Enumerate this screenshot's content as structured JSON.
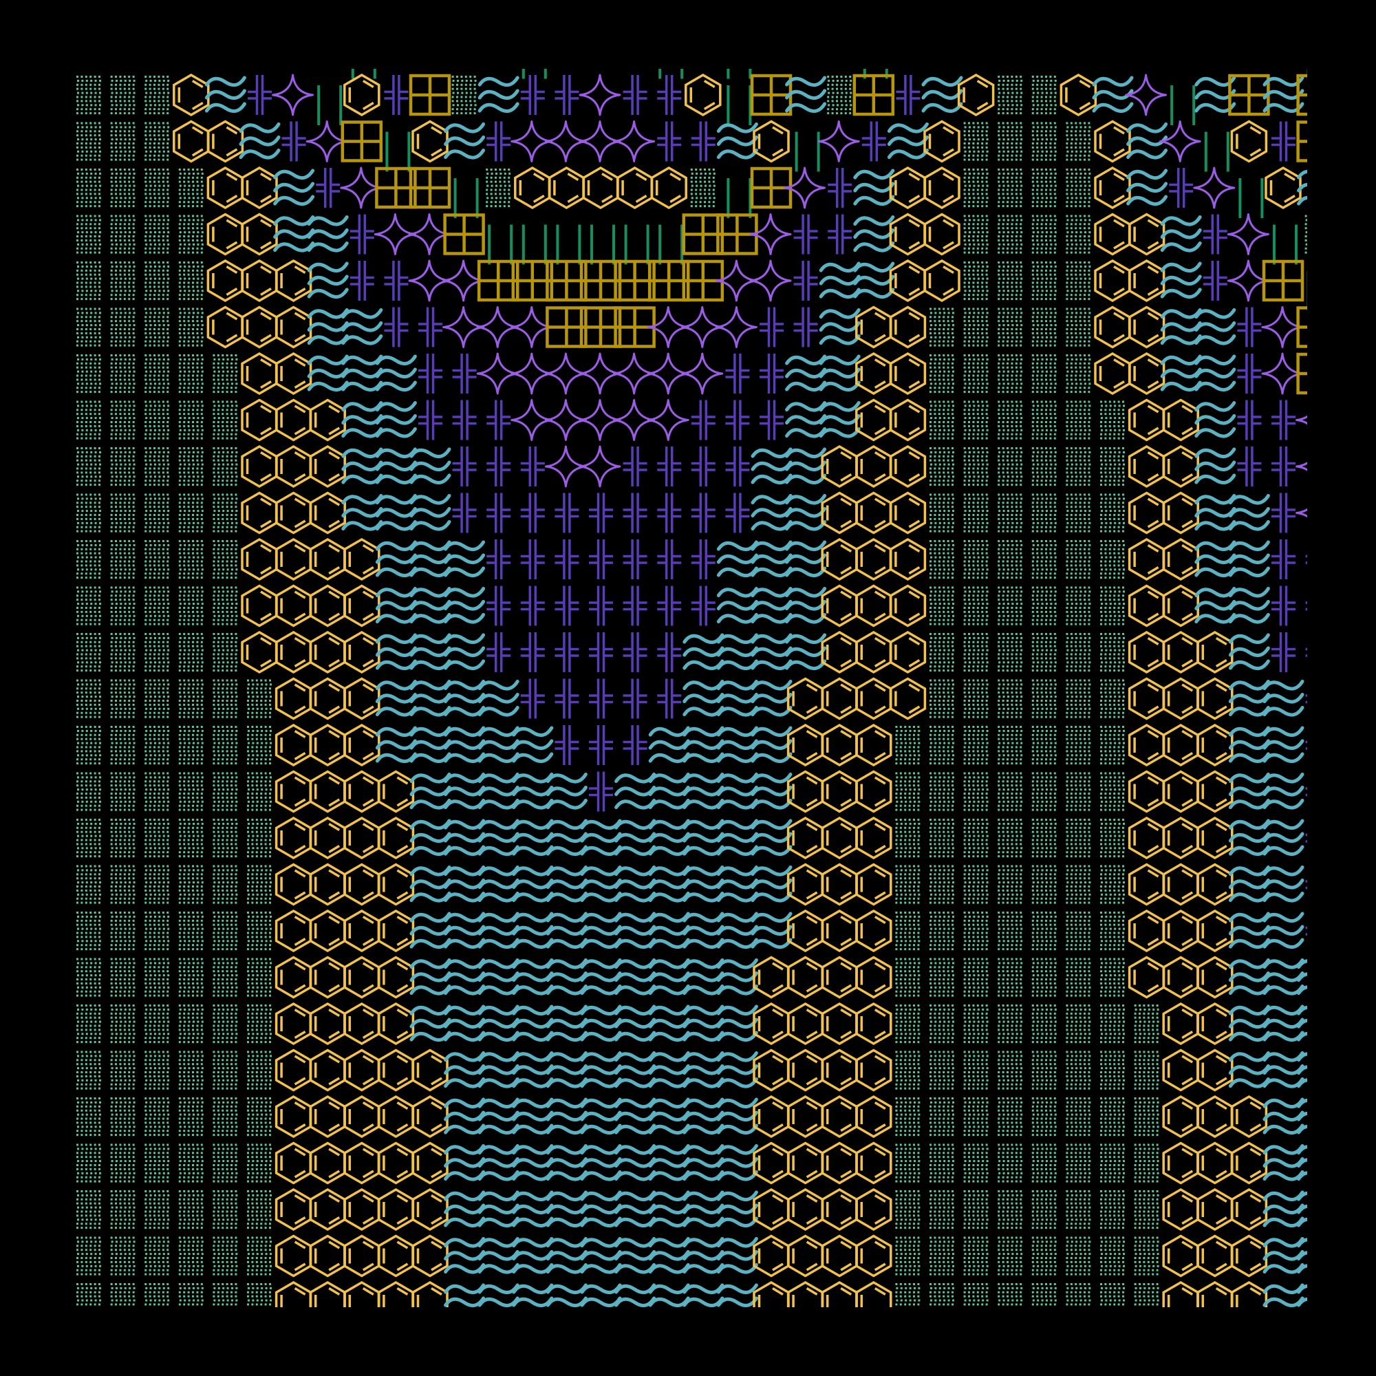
{
  "background": "#000000",
  "glyphs": {
    "░": {
      "name": "light-shade",
      "color": "#5fc49c"
    },
    "⌬": {
      "name": "benzene-ring",
      "color": "#f2c14e"
    },
    "≋": {
      "name": "triple-tilde",
      "color": "#5ab2c2"
    },
    "╬": {
      "name": "box-double-cross",
      "color": "#5a3bb8"
    },
    "✦": {
      "name": "four-pointed-star",
      "color": "#9b5de5"
    },
    "⊞": {
      "name": "squared-plus",
      "color": "#b8960a"
    },
    "‖": {
      "name": "double-vertical-bar",
      "color": "#14905f"
    }
  },
  "rows": [
    "        ‖    ‖   ‖ ‖   ‖            ‖",
    "░░░⌬≋╬✦‖⌬╬⊞░≋╬╬✦╬╬⌬‖⊞≋░⊞╬≋⌬░░⌬≋✦‖≋⊞≋⊞",
    "░░░⌬⌬≋╬✦⊞‖⌬≋╬✦✦✦✦╬╬≋⌬‖✦╬≋⌬░░░░⌬≋✦‖⌬╬⊞",
    "░░░░⌬⌬≋╬✦⊞⊞‖░⌬⌬⌬⌬⌬░‖⊞✦╬≋⌬⌬░░░░⌬≋╬✦‖⌬≋",
    "░░░░⌬⌬≋≋╬✦✦⊞‖‖‖‖‖‖⊞⊞✦╬╬≋⌬⌬░░░░⌬⌬≋╬✦‖░",
    "░░░░⌬⌬⌬≋╬╬✦✦⊞⊞⊞⊞⊞⊞⊞✦✦╬≋≋⌬⌬░░░░⌬⌬≋╬✦⊞‖",
    "░░░░⌬⌬⌬≋≋╬╬✦✦✦⊞⊞⊞✦✦✦╬╬≋⌬⌬░░░░░⌬⌬≋≋╬✦⊞",
    "░░░░░⌬⌬≋≋≋╬╬✦✦✦✦✦✦✦╬╬≋≋⌬⌬░░░░░⌬⌬≋≋╬✦⊞",
    "░░░░░⌬⌬⌬≋≋╬╬╬✦✦✦✦✦╬╬╬≋≋⌬⌬░░░░░░⌬⌬≋╬╬✦",
    "░░░░░⌬⌬⌬≋≋≋╬╬╬✦✦╬╬╬╬≋≋⌬⌬⌬░░░░░░⌬⌬≋╬╬✦",
    "░░░░░⌬⌬⌬≋≋≋╬╬╬╬╬╬╬╬╬≋≋⌬⌬⌬░░░░░░⌬⌬≋≋╬✦",
    "░░░░░⌬⌬⌬⌬≋≋≋╬╬╬╬╬╬╬≋≋≋⌬⌬⌬░░░░░░⌬⌬≋≋╬╬",
    "░░░░░⌬⌬⌬⌬≋≋≋╬╬╬╬╬╬╬≋≋≋⌬⌬⌬░░░░░░⌬⌬≋≋╬╬",
    "░░░░░⌬⌬⌬⌬≋≋≋╬╬╬╬╬╬≋≋≋≋⌬⌬⌬░░░░░░⌬⌬⌬≋╬╬",
    "░░░░░░⌬⌬⌬≋≋≋≋╬╬╬╬╬≋≋≋⌬⌬⌬⌬░░░░░░⌬⌬⌬≋≋╬",
    "░░░░░░⌬⌬⌬≋≋≋≋≋╬╬╬≋≋≋≋⌬⌬⌬░░░░░░░⌬⌬⌬≋≋╬",
    "░░░░░░⌬⌬⌬⌬≋≋≋≋≋╬≋≋≋≋≋⌬⌬⌬░░░░░░░⌬⌬⌬≋≋╬",
    "░░░░░░⌬⌬⌬⌬≋≋≋≋≋≋≋≋≋≋≋⌬⌬⌬░░░░░░░⌬⌬⌬≋≋╬",
    "░░░░░░⌬⌬⌬⌬≋≋≋≋≋≋≋≋≋≋≋⌬⌬⌬░░░░░░░⌬⌬⌬≋≋╬",
    "░░░░░░⌬⌬⌬⌬≋≋≋≋≋≋≋≋≋≋≋⌬⌬⌬░░░░░░░⌬⌬⌬≋≋╬",
    "░░░░░░⌬⌬⌬⌬≋≋≋≋≋≋≋≋≋≋⌬⌬⌬⌬░░░░░░░⌬⌬⌬≋≋≋",
    "░░░░░░⌬⌬⌬⌬≋≋≋≋≋≋≋≋≋≋⌬⌬⌬⌬░░░░░░░░⌬⌬≋≋≋",
    "░░░░░░⌬⌬⌬⌬⌬≋≋≋≋≋≋≋≋≋⌬⌬⌬⌬░░░░░░░░⌬⌬≋≋≋",
    "░░░░░░⌬⌬⌬⌬⌬≋≋≋≋≋≋≋≋≋⌬⌬⌬⌬░░░░░░░░⌬⌬⌬≋≋",
    "░░░░░░⌬⌬⌬⌬⌬≋≋≋≋≋≋≋≋≋⌬⌬⌬⌬░░░░░░░░⌬⌬⌬≋≋",
    "░░░░░░⌬⌬⌬⌬⌬≋≋≋≋≋≋≋≋≋⌬⌬⌬⌬░░░░░░░░⌬⌬⌬≋≋",
    "░░░░░░⌬⌬⌬⌬⌬≋≋≋≋≋≋≋≋≋⌬⌬⌬⌬░░░░░░░░⌬⌬⌬≋≋",
    "░░░░░░⌬⌬⌬⌬⌬≋≋≋≋≋≋≋≋≋⌬⌬⌬⌬░░░░░░░░⌬⌬⌬≋≋"
  ]
}
